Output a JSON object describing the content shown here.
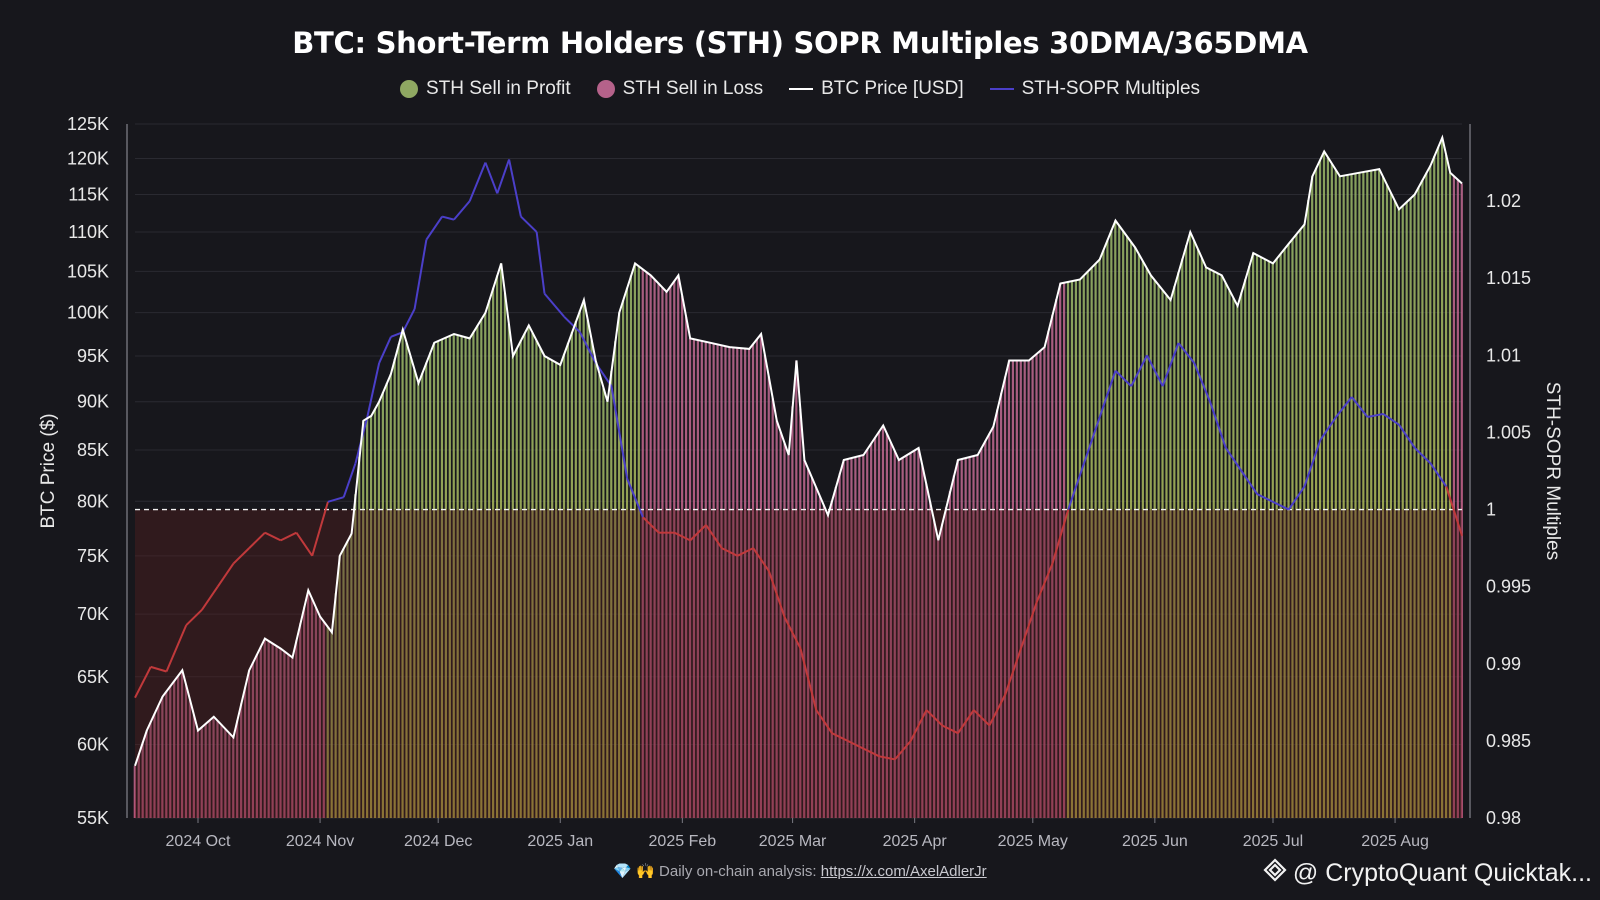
{
  "header": {
    "title": "BTC: Short-Term Holders (STH) SOPR Multiples 30DMA/365DMA"
  },
  "legend": [
    {
      "label": "STH Sell in Profit",
      "color": "#8fa862",
      "kind": "dot"
    },
    {
      "label": "STH Sell in Loss",
      "color": "#b5628a",
      "kind": "dot"
    },
    {
      "label": "BTC Price [USD]",
      "color": "#ffffff",
      "kind": "line"
    },
    {
      "label": "STH-SOPR Multiples",
      "color": "#4b3fc9",
      "kind": "line"
    }
  ],
  "footer": {
    "icons": "💎 🙌",
    "text": "Daily on-chain analysis: ",
    "link": "https://x.com/AxelAdlerJr"
  },
  "brand": {
    "text": "@ CryptoQuant Quicktak..."
  },
  "chart_data": {
    "type": "line",
    "title": "BTC: Short-Term Holders (STH) SOPR Multiples 30DMA/365DMA",
    "left_axis": {
      "label": "BTC Price ($)",
      "scale": "log",
      "range": [
        55000,
        125000
      ],
      "ticks": [
        55000,
        60000,
        65000,
        70000,
        75000,
        80000,
        85000,
        90000,
        95000,
        100000,
        105000,
        110000,
        115000,
        120000,
        125000
      ],
      "tick_labels": [
        "55K",
        "60K",
        "65K",
        "70K",
        "75K",
        "80K",
        "85K",
        "90K",
        "95K",
        "100K",
        "105K",
        "110K",
        "115K",
        "120K",
        "125K"
      ]
    },
    "right_axis": {
      "label": "STH-SOPR Multiples",
      "range": [
        0.98,
        1.025
      ],
      "ticks": [
        0.98,
        0.985,
        0.99,
        0.995,
        1,
        1.005,
        1.01,
        1.015,
        1.02
      ],
      "tick_labels": [
        "0.98",
        "0.985",
        "0.99",
        "0.995",
        "1",
        "1.005",
        "1.01",
        "1.015",
        "1.02"
      ]
    },
    "x_axis": {
      "start": "2024-09-15",
      "end": "2025-08-18",
      "tick_dates": [
        "2024-10-01",
        "2024-11-01",
        "2024-12-01",
        "2025-01-01",
        "2025-02-01",
        "2025-03-01",
        "2025-04-01",
        "2025-05-01",
        "2025-06-01",
        "2025-07-01",
        "2025-08-01"
      ],
      "tick_labels": [
        "2024 Oct",
        "2024 Nov",
        "2024 Dec",
        "2025 Jan",
        "2025 Feb",
        "2025 Mar",
        "2025 Apr",
        "2025 May",
        "2025 Jun",
        "2025 Jul",
        "2025 Aug"
      ]
    },
    "reference_line": 1,
    "colors": {
      "profit": "#8fa862",
      "loss": "#b5628a",
      "price": "#ffffff",
      "sopr_above": "#4b3fc9",
      "sopr_below": "#c0393b"
    },
    "series": [
      {
        "name": "BTC Price [USD]",
        "axis": "left",
        "points": [
          [
            "2024-09-15",
            58500
          ],
          [
            "2024-09-18",
            61000
          ],
          [
            "2024-09-22",
            63500
          ],
          [
            "2024-09-27",
            65500
          ],
          [
            "2024-10-01",
            61000
          ],
          [
            "2024-10-05",
            62000
          ],
          [
            "2024-10-10",
            60500
          ],
          [
            "2024-10-14",
            65500
          ],
          [
            "2024-10-18",
            68000
          ],
          [
            "2024-10-22",
            67200
          ],
          [
            "2024-10-25",
            66500
          ],
          [
            "2024-10-29",
            72000
          ],
          [
            "2024-11-01",
            69800
          ],
          [
            "2024-11-04",
            68500
          ],
          [
            "2024-11-06",
            75000
          ],
          [
            "2024-11-09",
            77000
          ],
          [
            "2024-11-12",
            88000
          ],
          [
            "2024-11-14",
            88500
          ],
          [
            "2024-11-16",
            90000
          ],
          [
            "2024-11-19",
            93000
          ],
          [
            "2024-11-22",
            98000
          ],
          [
            "2024-11-26",
            92000
          ],
          [
            "2024-11-30",
            96500
          ],
          [
            "2024-12-05",
            97500
          ],
          [
            "2024-12-09",
            97000
          ],
          [
            "2024-12-13",
            100000
          ],
          [
            "2024-12-17",
            106000
          ],
          [
            "2024-12-20",
            95000
          ],
          [
            "2024-12-24",
            98500
          ],
          [
            "2024-12-28",
            95000
          ],
          [
            "2025-01-01",
            94000
          ],
          [
            "2025-01-07",
            101500
          ],
          [
            "2025-01-10",
            94500
          ],
          [
            "2025-01-13",
            90000
          ],
          [
            "2025-01-16",
            100000
          ],
          [
            "2025-01-20",
            106000
          ],
          [
            "2025-01-24",
            104500
          ],
          [
            "2025-01-28",
            102500
          ],
          [
            "2025-01-31",
            104500
          ],
          [
            "2025-02-03",
            97000
          ],
          [
            "2025-02-08",
            96500
          ],
          [
            "2025-02-13",
            96000
          ],
          [
            "2025-02-18",
            95800
          ],
          [
            "2025-02-21",
            97500
          ],
          [
            "2025-02-25",
            88000
          ],
          [
            "2025-02-28",
            84500
          ],
          [
            "2025-03-02",
            94500
          ],
          [
            "2025-03-04",
            84000
          ],
          [
            "2025-03-10",
            78700
          ],
          [
            "2025-03-14",
            84000
          ],
          [
            "2025-03-19",
            84500
          ],
          [
            "2025-03-24",
            87500
          ],
          [
            "2025-03-28",
            84000
          ],
          [
            "2025-04-02",
            85200
          ],
          [
            "2025-04-07",
            76400
          ],
          [
            "2025-04-12",
            84000
          ],
          [
            "2025-04-17",
            84500
          ],
          [
            "2025-04-21",
            87400
          ],
          [
            "2025-04-25",
            94500
          ],
          [
            "2025-04-30",
            94500
          ],
          [
            "2025-05-04",
            96000
          ],
          [
            "2025-05-08",
            103500
          ],
          [
            "2025-05-13",
            104000
          ],
          [
            "2025-05-18",
            106500
          ],
          [
            "2025-05-22",
            111500
          ],
          [
            "2025-05-27",
            108000
          ],
          [
            "2025-05-31",
            104500
          ],
          [
            "2025-06-05",
            101500
          ],
          [
            "2025-06-10",
            110000
          ],
          [
            "2025-06-14",
            105500
          ],
          [
            "2025-06-18",
            104500
          ],
          [
            "2025-06-22",
            100800
          ],
          [
            "2025-06-26",
            107300
          ],
          [
            "2025-07-01",
            106000
          ],
          [
            "2025-07-05",
            108500
          ],
          [
            "2025-07-09",
            111000
          ],
          [
            "2025-07-11",
            117500
          ],
          [
            "2025-07-14",
            121000
          ],
          [
            "2025-07-18",
            117500
          ],
          [
            "2025-07-23",
            118000
          ],
          [
            "2025-07-28",
            118500
          ],
          [
            "2025-08-02",
            113000
          ],
          [
            "2025-08-06",
            115000
          ],
          [
            "2025-08-10",
            119000
          ],
          [
            "2025-08-13",
            123000
          ],
          [
            "2025-08-15",
            118000
          ],
          [
            "2025-08-18",
            116500
          ]
        ]
      },
      {
        "name": "STH-SOPR Multiples",
        "axis": "right",
        "points": [
          [
            "2024-09-15",
            0.9878
          ],
          [
            "2024-09-19",
            0.9898
          ],
          [
            "2024-09-23",
            0.9895
          ],
          [
            "2024-09-28",
            0.9925
          ],
          [
            "2024-10-02",
            0.9935
          ],
          [
            "2024-10-06",
            0.995
          ],
          [
            "2024-10-10",
            0.9965
          ],
          [
            "2024-10-14",
            0.9975
          ],
          [
            "2024-10-18",
            0.9985
          ],
          [
            "2024-10-22",
            0.998
          ],
          [
            "2024-10-26",
            0.9985
          ],
          [
            "2024-10-30",
            0.997
          ],
          [
            "2024-11-03",
            1.0005
          ],
          [
            "2024-11-07",
            1.0008
          ],
          [
            "2024-11-10",
            1.003
          ],
          [
            "2024-11-13",
            1.006
          ],
          [
            "2024-11-16",
            1.0095
          ],
          [
            "2024-11-19",
            1.0112
          ],
          [
            "2024-11-22",
            1.0115
          ],
          [
            "2024-11-25",
            1.013
          ],
          [
            "2024-11-28",
            1.0175
          ],
          [
            "2024-12-02",
            1.019
          ],
          [
            "2024-12-05",
            1.0188
          ],
          [
            "2024-12-09",
            1.02
          ],
          [
            "2024-12-13",
            1.0225
          ],
          [
            "2024-12-16",
            1.0205
          ],
          [
            "2024-12-19",
            1.0227
          ],
          [
            "2024-12-22",
            1.019
          ],
          [
            "2024-12-26",
            1.018
          ],
          [
            "2024-12-28",
            1.014
          ],
          [
            "2025-01-02",
            1.0125
          ],
          [
            "2025-01-06",
            1.0115
          ],
          [
            "2025-01-10",
            1.0095
          ],
          [
            "2025-01-14",
            1.008
          ],
          [
            "2025-01-18",
            1.002
          ],
          [
            "2025-01-22",
            0.9995
          ],
          [
            "2025-01-26",
            0.9985
          ],
          [
            "2025-01-30",
            0.9985
          ],
          [
            "2025-02-03",
            0.998
          ],
          [
            "2025-02-07",
            0.999
          ],
          [
            "2025-02-11",
            0.9975
          ],
          [
            "2025-02-15",
            0.997
          ],
          [
            "2025-02-19",
            0.9975
          ],
          [
            "2025-02-23",
            0.996
          ],
          [
            "2025-02-27",
            0.993
          ],
          [
            "2025-03-03",
            0.991
          ],
          [
            "2025-03-07",
            0.987
          ],
          [
            "2025-03-11",
            0.9855
          ],
          [
            "2025-03-15",
            0.985
          ],
          [
            "2025-03-19",
            0.9845
          ],
          [
            "2025-03-23",
            0.984
          ],
          [
            "2025-03-27",
            0.9838
          ],
          [
            "2025-03-31",
            0.985
          ],
          [
            "2025-04-04",
            0.987
          ],
          [
            "2025-04-08",
            0.986
          ],
          [
            "2025-04-12",
            0.9855
          ],
          [
            "2025-04-16",
            0.987
          ],
          [
            "2025-04-20",
            0.986
          ],
          [
            "2025-04-24",
            0.988
          ],
          [
            "2025-04-28",
            0.991
          ],
          [
            "2025-05-02",
            0.994
          ],
          [
            "2025-05-06",
            0.9965
          ],
          [
            "2025-05-10",
            1.0
          ],
          [
            "2025-05-14",
            1.003
          ],
          [
            "2025-05-18",
            1.006
          ],
          [
            "2025-05-22",
            1.009
          ],
          [
            "2025-05-26",
            1.008
          ],
          [
            "2025-05-30",
            1.01
          ],
          [
            "2025-06-03",
            1.008
          ],
          [
            "2025-06-07",
            1.0108
          ],
          [
            "2025-06-11",
            1.0095
          ],
          [
            "2025-06-15",
            1.007
          ],
          [
            "2025-06-19",
            1.004
          ],
          [
            "2025-06-23",
            1.0025
          ],
          [
            "2025-06-27",
            1.001
          ],
          [
            "2025-07-01",
            1.0005
          ],
          [
            "2025-07-05",
            1.0
          ],
          [
            "2025-07-09",
            1.0015
          ],
          [
            "2025-07-13",
            1.0045
          ],
          [
            "2025-07-17",
            1.006
          ],
          [
            "2025-07-21",
            1.0073
          ],
          [
            "2025-07-25",
            1.006
          ],
          [
            "2025-07-29",
            1.0062
          ],
          [
            "2025-08-02",
            1.0055
          ],
          [
            "2025-08-06",
            1.004
          ],
          [
            "2025-08-10",
            1.003
          ],
          [
            "2025-08-14",
            1.0015
          ],
          [
            "2025-08-18",
            0.9983
          ]
        ]
      }
    ]
  }
}
